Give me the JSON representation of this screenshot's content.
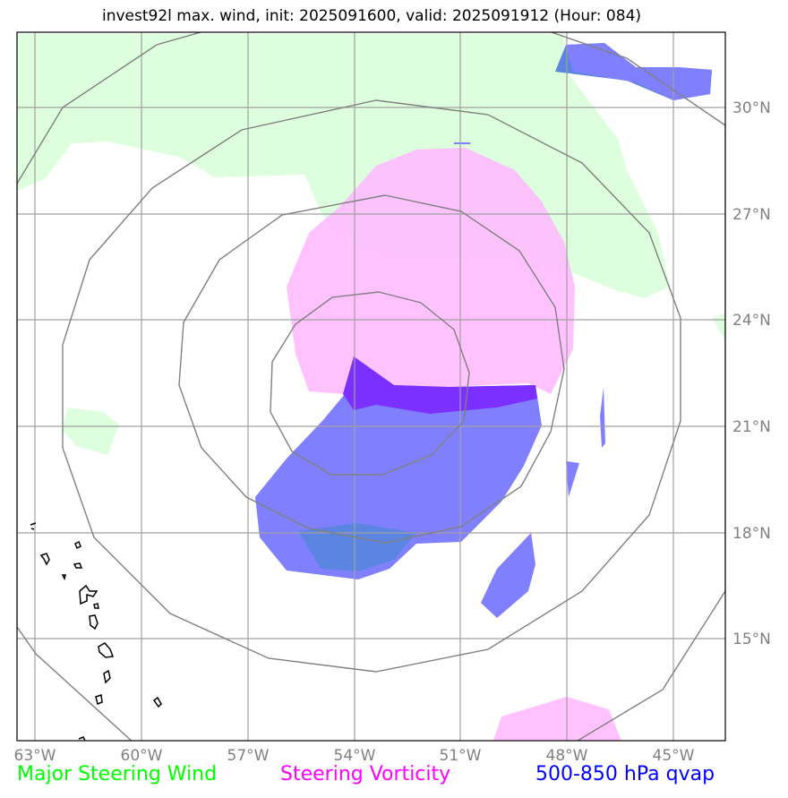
{
  "title": "invest92l max. wind, init: 2025091600, valid: 2025091912 (Hour: 084)",
  "map": {
    "lon_ticks": [
      "63°W",
      "60°W",
      "57°W",
      "54°W",
      "51°W",
      "48°W",
      "45°W"
    ],
    "lat_ticks": [
      "30°N",
      "27°N",
      "24°N",
      "21°N",
      "18°N",
      "15°N"
    ],
    "center": {
      "lon": -54.0,
      "lat": 22.0
    },
    "range_ring_count": 4
  },
  "legend": {
    "wind": {
      "label": "Major Steering Wind",
      "color": "#00ff00"
    },
    "vorticity": {
      "label": "Steering Vorticity",
      "color": "#ff00ff"
    },
    "qvap": {
      "label": "500-850 hPa qvap",
      "color": "#0000ff"
    }
  },
  "colors": {
    "wind_fill": "#ddffdd",
    "vort_fill": "#ffbbff",
    "qvap_fill": "#8080ff",
    "grid": "#a0a0a0",
    "rings": "#808080",
    "coast": "#000000"
  }
}
